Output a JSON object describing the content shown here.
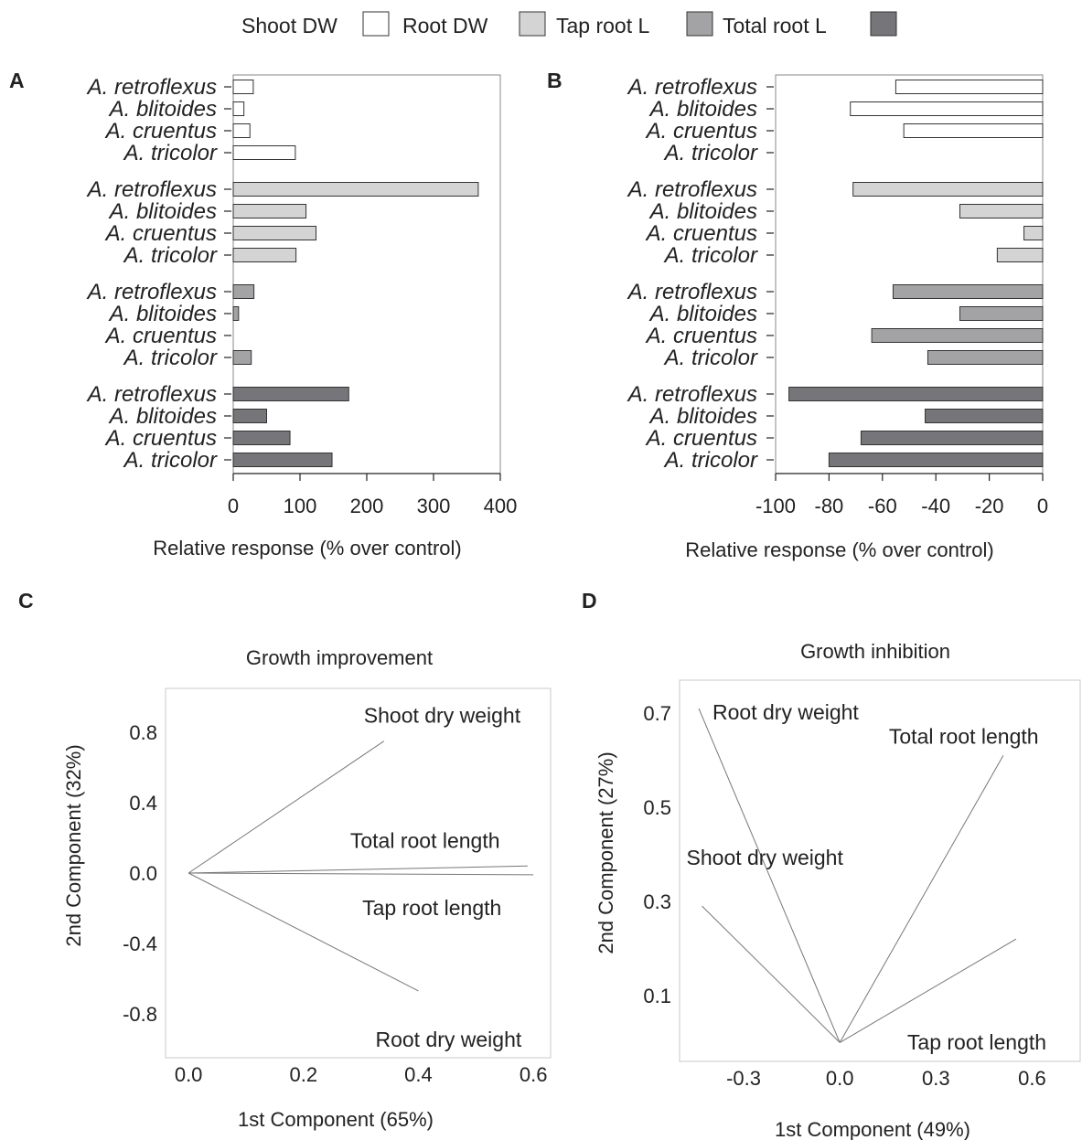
{
  "legend": {
    "items": [
      {
        "label": "Shoot DW",
        "color": "#ffffff"
      },
      {
        "label": "Root DW",
        "color": "#d4d4d4"
      },
      {
        "label": "Tap root L",
        "color": "#a3a3a6"
      },
      {
        "label": "Total root L",
        "color": "#76767a"
      }
    ]
  },
  "panels": {
    "A": {
      "letter": "A"
    },
    "B": {
      "letter": "B"
    },
    "C": {
      "letter": "C"
    },
    "D": {
      "letter": "D"
    }
  },
  "chart_data": [
    {
      "id": "A",
      "type": "bar",
      "orientation": "horizontal",
      "groups": [
        "Shoot DW",
        "Root DW",
        "Tap root L",
        "Total root L"
      ],
      "categories": [
        "A. retroflexus",
        "A. blitoides",
        "A. cruentus",
        "A. tricolor"
      ],
      "series": [
        {
          "name": "Shoot DW",
          "values": [
            30,
            16,
            25,
            93
          ]
        },
        {
          "name": "Root DW",
          "values": [
            367,
            109,
            124,
            94
          ]
        },
        {
          "name": "Tap root L",
          "values": [
            31,
            8,
            0,
            27
          ]
        },
        {
          "name": "Total root L",
          "values": [
            173,
            50,
            85,
            148
          ]
        }
      ],
      "xlabel": "Relative response (% over control)",
      "xlim": [
        0,
        400
      ],
      "xticks": [
        0,
        100,
        200,
        300,
        400
      ],
      "grid": false
    },
    {
      "id": "B",
      "type": "bar",
      "orientation": "horizontal",
      "groups": [
        "Shoot DW",
        "Root DW",
        "Tap root L",
        "Total root L"
      ],
      "categories": [
        "A. retroflexus",
        "A. blitoides",
        "A. cruentus",
        "A. tricolor"
      ],
      "series": [
        {
          "name": "Shoot DW",
          "values": [
            -55,
            -72,
            -52,
            0
          ]
        },
        {
          "name": "Root DW",
          "values": [
            -71,
            -31,
            -7,
            -17
          ]
        },
        {
          "name": "Tap root L",
          "values": [
            -56,
            -31,
            -64,
            -43
          ]
        },
        {
          "name": "Total root L",
          "values": [
            -95,
            -44,
            -68,
            -80
          ]
        }
      ],
      "xlabel": "Relative response (% over control)",
      "xlim": [
        -100,
        0
      ],
      "xticks": [
        -100,
        -80,
        -60,
        -40,
        -20,
        0
      ],
      "grid": false
    },
    {
      "id": "C",
      "type": "scatter",
      "subtype": "pca-loadings",
      "title": "Growth improvement",
      "xlabel": "1st Component (65%)",
      "ylabel": "2nd Component (32%)",
      "xlim": [
        -0.04,
        0.63
      ],
      "ylim": [
        -1.05,
        1.05
      ],
      "xticks": [
        0.0,
        0.2,
        0.4,
        0.6
      ],
      "yticks": [
        0.8,
        0.4,
        0.0,
        -0.4,
        -0.8
      ],
      "tick_decimals": 1,
      "vectors": [
        {
          "name": "Shoot dry weight",
          "x": 0.34,
          "y": 0.75
        },
        {
          "name": "Total root length",
          "x": 0.59,
          "y": 0.04
        },
        {
          "name": "Tap root length",
          "x": 0.6,
          "y": -0.01
        },
        {
          "name": "Root dry weight",
          "x": 0.4,
          "y": -0.67
        }
      ],
      "grid": false
    },
    {
      "id": "D",
      "type": "scatter",
      "subtype": "pca-loadings",
      "title": "Growth inhibition",
      "xlabel": "1st Component (49%)",
      "ylabel": "2nd Component (27%)",
      "xlim": [
        -0.5,
        0.75
      ],
      "ylim": [
        -0.04,
        0.77
      ],
      "xticks": [
        -0.3,
        0.0,
        0.3,
        0.6
      ],
      "yticks": [
        0.7,
        0.5,
        0.3,
        0.1
      ],
      "tick_decimals": 1,
      "vectors": [
        {
          "name": "Root dry weight",
          "x": -0.44,
          "y": 0.71
        },
        {
          "name": "Total root length",
          "x": 0.51,
          "y": 0.61
        },
        {
          "name": "Shoot dry weight",
          "x": -0.43,
          "y": 0.29
        },
        {
          "name": "Tap root length",
          "x": 0.55,
          "y": 0.22
        }
      ],
      "grid": false
    }
  ]
}
